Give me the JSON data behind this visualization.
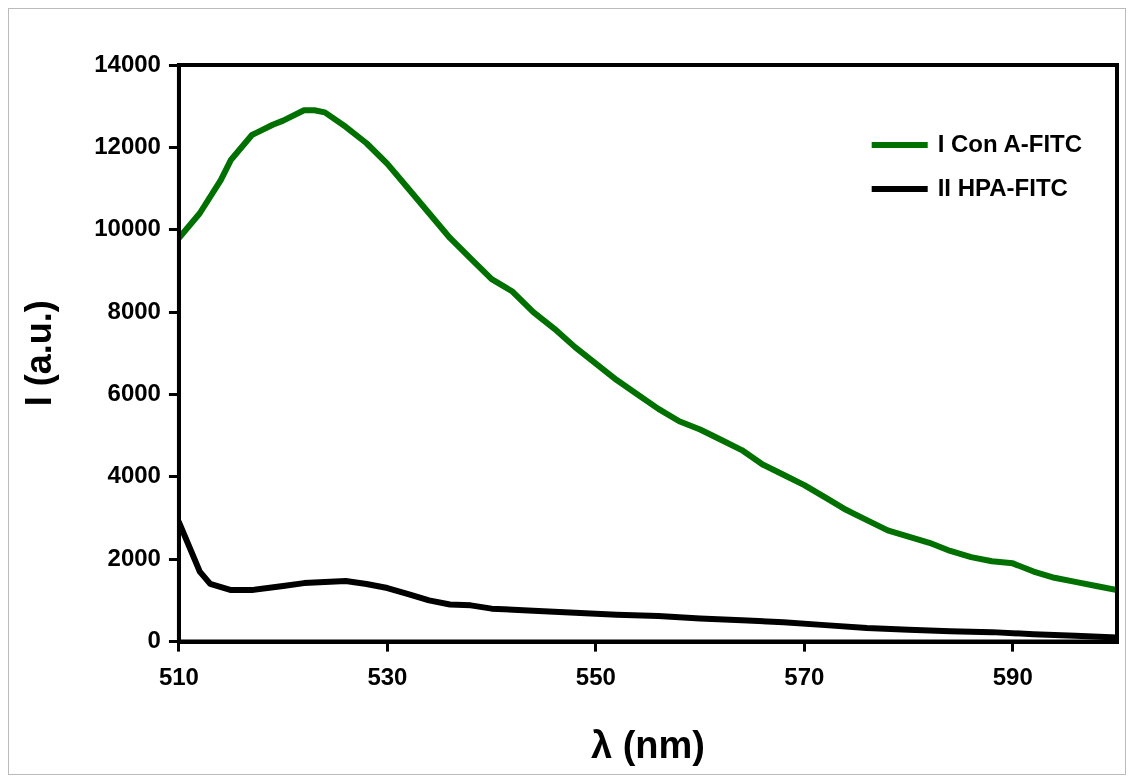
{
  "chart_data": {
    "type": "line",
    "xlabel": "λ (nm)",
    "ylabel": "I (a.u.)",
    "xlim": [
      510,
      600
    ],
    "xticks": [
      510,
      530,
      550,
      570,
      590
    ],
    "ylim": [
      0,
      14000
    ],
    "yticks": [
      0,
      2000,
      4000,
      6000,
      8000,
      10000,
      12000,
      14000
    ],
    "grid": false,
    "legend": "top right",
    "marker": "none",
    "line_style": "solid",
    "series": [
      {
        "name": "I Con A-FITC",
        "color": "#007000",
        "x": [
          510,
          512,
          514,
          515,
          517,
          519,
          520,
          522,
          523,
          524,
          526,
          528,
          530,
          532,
          534,
          536,
          538,
          540,
          542,
          544,
          546,
          548,
          550,
          552,
          554,
          556,
          558,
          560,
          562,
          564,
          566,
          568,
          570,
          572,
          574,
          576,
          578,
          580,
          582,
          584,
          586,
          588,
          590,
          592,
          594,
          596,
          598,
          600
        ],
        "values": [
          9800,
          10400,
          11200,
          11700,
          12300,
          12550,
          12650,
          12900,
          12900,
          12850,
          12500,
          12100,
          11600,
          11000,
          10400,
          9800,
          9300,
          8800,
          8500,
          8000,
          7600,
          7150,
          6750,
          6350,
          6000,
          5650,
          5350,
          5150,
          4900,
          4650,
          4300,
          4050,
          3800,
          3500,
          3200,
          2950,
          2700,
          2550,
          2400,
          2200,
          2050,
          1950,
          1900,
          1700,
          1550,
          1450,
          1350,
          1250
        ]
      },
      {
        "name": "II HPA-FITC",
        "color": "#000000",
        "x": [
          510,
          511,
          512,
          513,
          515,
          517,
          520,
          522,
          524,
          526,
          528,
          530,
          532,
          534,
          536,
          538,
          540,
          544,
          548,
          552,
          556,
          560,
          564,
          568,
          572,
          576,
          580,
          584,
          588,
          592,
          596,
          600
        ],
        "values": [
          2900,
          2300,
          1700,
          1400,
          1250,
          1250,
          1350,
          1420,
          1450,
          1470,
          1400,
          1300,
          1150,
          1000,
          900,
          880,
          800,
          750,
          700,
          650,
          620,
          560,
          520,
          470,
          400,
          330,
          290,
          250,
          230,
          180,
          140,
          100
        ]
      }
    ]
  }
}
